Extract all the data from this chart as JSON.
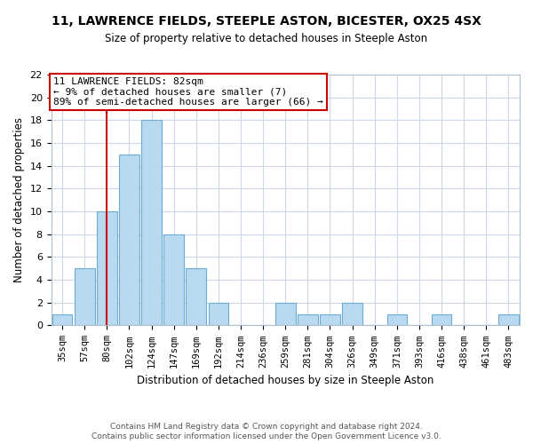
{
  "title": "11, LAWRENCE FIELDS, STEEPLE ASTON, BICESTER, OX25 4SX",
  "subtitle": "Size of property relative to detached houses in Steeple Aston",
  "xlabel": "Distribution of detached houses by size in Steeple Aston",
  "ylabel": "Number of detached properties",
  "bar_labels": [
    "35sqm",
    "57sqm",
    "80sqm",
    "102sqm",
    "124sqm",
    "147sqm",
    "169sqm",
    "192sqm",
    "214sqm",
    "236sqm",
    "259sqm",
    "281sqm",
    "304sqm",
    "326sqm",
    "349sqm",
    "371sqm",
    "393sqm",
    "416sqm",
    "438sqm",
    "461sqm",
    "483sqm"
  ],
  "bar_values": [
    1,
    5,
    10,
    15,
    18,
    8,
    5,
    2,
    0,
    0,
    2,
    1,
    1,
    2,
    0,
    1,
    0,
    1,
    0,
    0,
    1
  ],
  "bar_color": "#b8d9f0",
  "bar_edge_color": "#6aaed6",
  "reference_line_index": 2,
  "reference_line_color": "#cc0000",
  "annotation_line1": "11 LAWRENCE FIELDS: 82sqm",
  "annotation_line2": "← 9% of detached houses are smaller (7)",
  "annotation_line3": "89% of semi-detached houses are larger (66) →",
  "annotation_box_edge_color": "#cc0000",
  "ylim": [
    0,
    22
  ],
  "yticks": [
    0,
    2,
    4,
    6,
    8,
    10,
    12,
    14,
    16,
    18,
    20,
    22
  ],
  "footer_line1": "Contains HM Land Registry data © Crown copyright and database right 2024.",
  "footer_line2": "Contains public sector information licensed under the Open Government Licence v3.0.",
  "bg_color": "#ffffff",
  "grid_color": "#ccd8ea"
}
